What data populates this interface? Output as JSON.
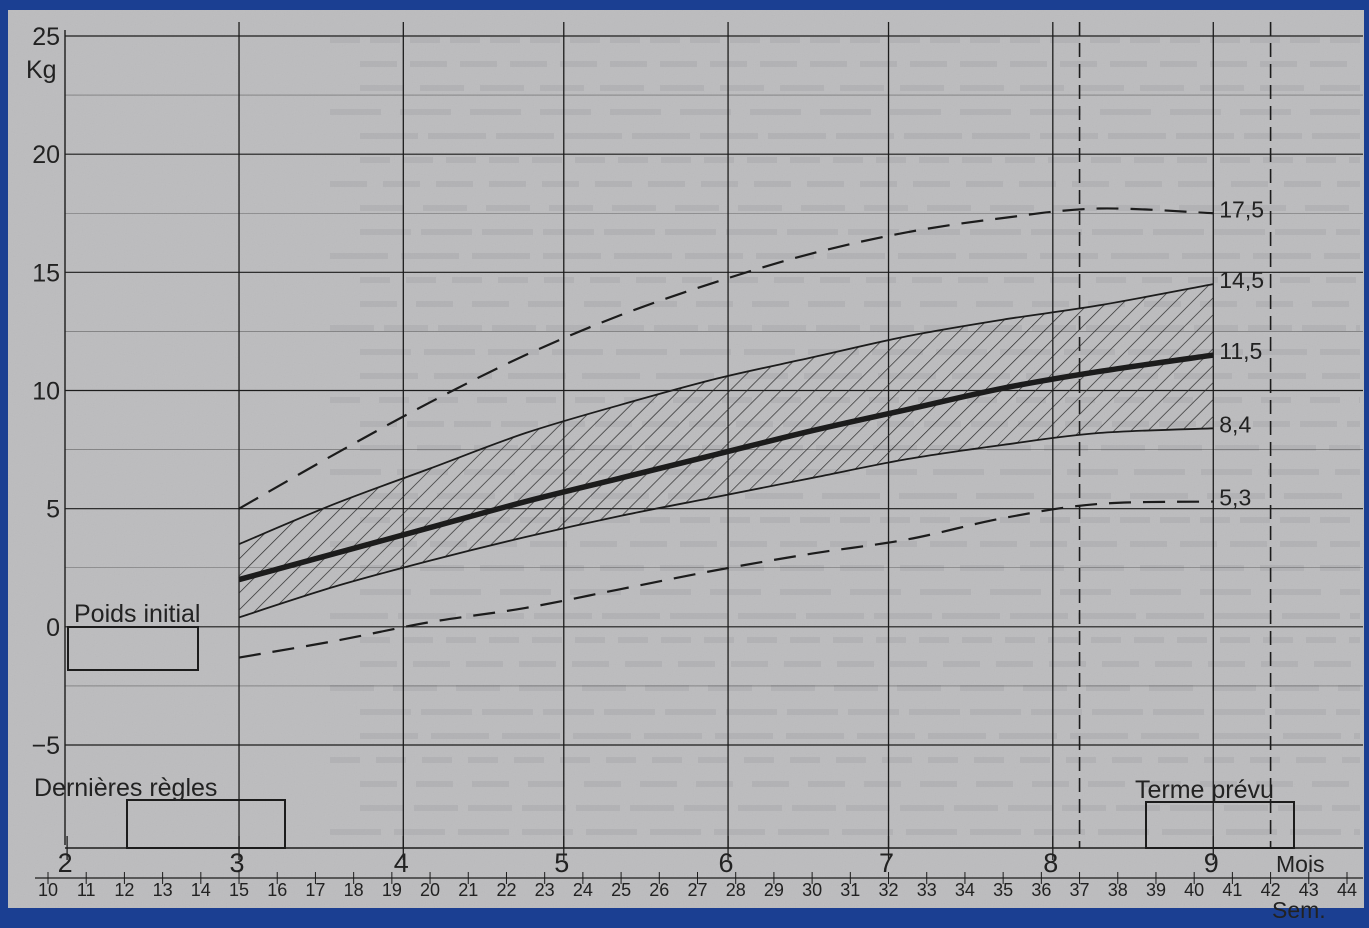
{
  "chart_data": {
    "type": "line",
    "title": "",
    "y_unit": "Kg",
    "ylim": [
      -5,
      25
    ],
    "y_ticks": [
      {
        "value": 25,
        "label": "25"
      },
      {
        "value": 20,
        "label": "20"
      },
      {
        "value": 15,
        "label": "15"
      },
      {
        "value": 10,
        "label": "10"
      },
      {
        "value": 5,
        "label": "5"
      },
      {
        "value": 0,
        "label": "0"
      },
      {
        "value": -5,
        "label": "−5"
      }
    ],
    "xlim": [
      10,
      44
    ],
    "x_unit": "Sem.",
    "month_unit": "Mois",
    "week_ticks": [
      "10",
      "11",
      "12",
      "13",
      "14",
      "15",
      "16",
      "17",
      "18",
      "19",
      "20",
      "21",
      "22",
      "23",
      "24",
      "25",
      "26",
      "27",
      "28",
      "29",
      "30",
      "31",
      "32",
      "33",
      "34",
      "35",
      "36",
      "37",
      "38",
      "39",
      "40",
      "41",
      "42",
      "43",
      "44"
    ],
    "months": [
      {
        "label": "2",
        "week": 10.5
      },
      {
        "label": "3",
        "week": 15
      },
      {
        "label": "4",
        "week": 19.3
      },
      {
        "label": "5",
        "week": 23.5
      },
      {
        "label": "6",
        "week": 27.8
      },
      {
        "label": "7",
        "week": 32
      },
      {
        "label": "8",
        "week": 36.3
      },
      {
        "label": "9",
        "week": 40.5
      }
    ],
    "series": [
      {
        "style": "dashed",
        "end_label": "17,5",
        "points": [
          [
            15,
            5
          ],
          [
            17.5,
            7.3
          ],
          [
            20,
            9.5
          ],
          [
            22.5,
            11.5
          ],
          [
            25,
            13.2
          ],
          [
            27.5,
            14.6
          ],
          [
            30,
            15.8
          ],
          [
            32.5,
            16.7
          ],
          [
            35,
            17.3
          ],
          [
            37.5,
            17.7
          ],
          [
            40.5,
            17.5
          ]
        ]
      },
      {
        "style": "solid-thin",
        "end_label": "14,5",
        "points": [
          [
            15,
            3.5
          ],
          [
            17.5,
            5.2
          ],
          [
            20,
            6.7
          ],
          [
            22.5,
            8.2
          ],
          [
            25,
            9.4
          ],
          [
            27.5,
            10.5
          ],
          [
            30,
            11.4
          ],
          [
            32.5,
            12.3
          ],
          [
            35,
            13.0
          ],
          [
            37.5,
            13.6
          ],
          [
            40.5,
            14.5
          ]
        ]
      },
      {
        "style": "solid-thick",
        "end_label": "11,5",
        "points": [
          [
            15,
            2.0
          ],
          [
            17.5,
            3.1
          ],
          [
            20,
            4.2
          ],
          [
            22.5,
            5.3
          ],
          [
            25,
            6.3
          ],
          [
            27.5,
            7.3
          ],
          [
            30,
            8.3
          ],
          [
            32.5,
            9.2
          ],
          [
            35,
            10.1
          ],
          [
            37.5,
            10.8
          ],
          [
            40.5,
            11.5
          ]
        ]
      },
      {
        "style": "solid-thin",
        "end_label": "8,4",
        "points": [
          [
            15,
            0.4
          ],
          [
            17.5,
            1.7
          ],
          [
            20,
            2.8
          ],
          [
            22.5,
            3.8
          ],
          [
            25,
            4.7
          ],
          [
            27.5,
            5.5
          ],
          [
            30,
            6.3
          ],
          [
            32.5,
            7.1
          ],
          [
            35,
            7.7
          ],
          [
            37.5,
            8.2
          ],
          [
            40.5,
            8.4
          ]
        ]
      },
      {
        "style": "dashed",
        "end_label": "5,3",
        "points": [
          [
            15,
            -1.3
          ],
          [
            17.5,
            -0.6
          ],
          [
            20,
            0.2
          ],
          [
            22.5,
            0.8
          ],
          [
            25,
            1.6
          ],
          [
            27.5,
            2.4
          ],
          [
            30,
            3.1
          ],
          [
            32.5,
            3.7
          ],
          [
            35,
            4.6
          ],
          [
            37.5,
            5.2
          ],
          [
            40.5,
            5.3
          ]
        ]
      }
    ],
    "shaded_band": "between series 2 and 4 (hatched)",
    "annotations": [
      {
        "label": "Poids initial"
      },
      {
        "label": "Dernières règles"
      },
      {
        "label": "Terme prévu"
      }
    ],
    "vertical_dashed_weeks": [
      37,
      42
    ],
    "grid": true
  },
  "colors": {
    "background": "#1b3f92",
    "paper": "#bcbcbe",
    "ink": "#1c1c1c"
  }
}
